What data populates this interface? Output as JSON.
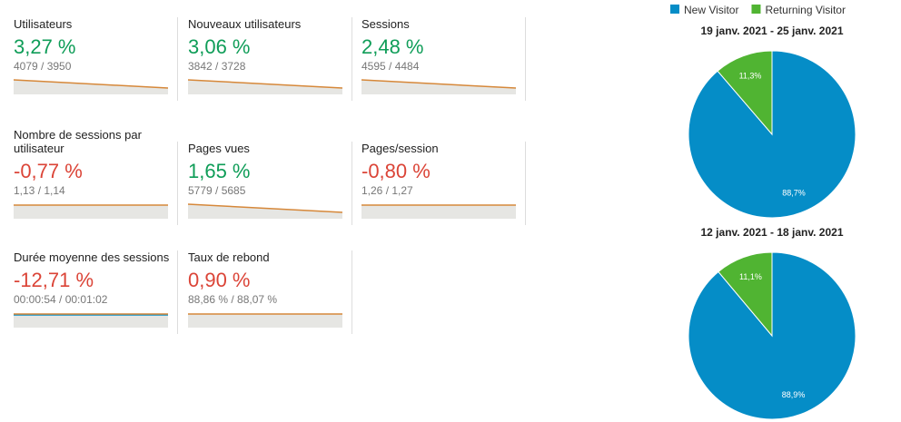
{
  "metrics": [
    {
      "label": "Utilisateurs",
      "value": "3,27 %",
      "comparison": "4079 / 3950",
      "color": "#0f9d58"
    },
    {
      "label": "Nouveaux utilisateurs",
      "value": "3,06 %",
      "comparison": "3842 / 3728",
      "color": "#0f9d58"
    },
    {
      "label": "Sessions",
      "value": "2,48 %",
      "comparison": "4595 / 4484",
      "color": "#0f9d58"
    },
    {
      "label": "Nombre de sessions par utilisateur",
      "value": "-0,77 %",
      "comparison": "1,13 / 1,14",
      "color": "#db4437"
    },
    {
      "label": "Pages vues",
      "value": "1,65 %",
      "comparison": "5779 / 5685",
      "color": "#0f9d58"
    },
    {
      "label": "Pages/session",
      "value": "-0,80 %",
      "comparison": "1,26 / 1,27",
      "color": "#db4437"
    },
    {
      "label": "Durée moyenne des sessions",
      "value": "-12,71 %",
      "comparison": "00:00:54 / 00:01:02",
      "color": "#db4437"
    },
    {
      "label": "Taux de rebond",
      "value": "0,90 %",
      "comparison": "88,86 % / 88,07 %",
      "color": "#db4437"
    }
  ],
  "pie_legend": [
    {
      "name": "New Visitor",
      "color": "#058dc7"
    },
    {
      "name": "Returning Visitor",
      "color": "#50b432"
    }
  ],
  "pies": [
    {
      "type": "pie",
      "title": "19 janv. 2021 - 25 janv. 2021",
      "values": [
        88.7,
        11.3
      ],
      "value_labels": [
        "88,7%",
        "11,3%"
      ]
    },
    {
      "type": "pie",
      "title": "12 janv. 2021 - 18 janv. 2021",
      "values": [
        88.9,
        11.1
      ],
      "value_labels": [
        "88,9%",
        "11,1%"
      ]
    }
  ]
}
